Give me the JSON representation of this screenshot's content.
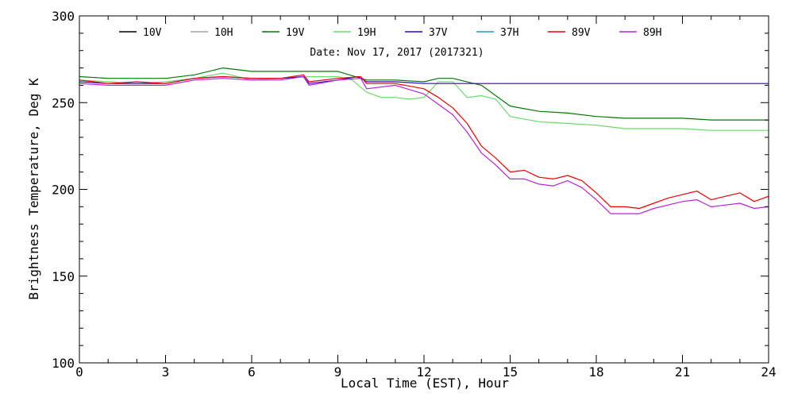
{
  "chart_data": {
    "type": "line",
    "title": "Date: Nov 17, 2017 (2017321)",
    "xlabel": "Local Time (EST), Hour",
    "ylabel": "Brightness Temperature, Deg K",
    "xlim": [
      0,
      24
    ],
    "ylim": [
      100,
      300
    ],
    "xticks": [
      0,
      3,
      6,
      9,
      12,
      15,
      18,
      21,
      24
    ],
    "yticks": [
      100,
      150,
      200,
      250,
      300
    ],
    "grid": false,
    "legend": "top",
    "series": [
      {
        "name": "10V",
        "color": "#000000",
        "x": [],
        "y": []
      },
      {
        "name": "10H",
        "color": "#a0a0a0",
        "x": [],
        "y": []
      },
      {
        "name": "19V",
        "color": "#007a00",
        "x": [
          0,
          1,
          2,
          3,
          4,
          5,
          6,
          7,
          8,
          9,
          10,
          11,
          12,
          12.5,
          13,
          14,
          15,
          16,
          17,
          18,
          19,
          20,
          21,
          22,
          23,
          24
        ],
        "y": [
          265,
          264,
          264,
          264,
          266,
          270,
          268,
          268,
          268,
          268,
          263,
          263,
          262,
          264,
          264,
          260,
          248,
          245,
          244,
          242,
          241,
          241,
          241,
          240,
          240,
          240
        ]
      },
      {
        "name": "19H",
        "color": "#66dd66",
        "x": [
          0,
          1,
          2,
          3,
          4,
          5,
          6,
          7,
          8,
          9,
          9.5,
          10,
          10.5,
          11,
          11.5,
          12,
          12.5,
          13,
          13.5,
          14,
          14.5,
          15,
          16,
          17,
          18,
          19,
          20,
          21,
          22,
          23,
          24
        ],
        "y": [
          263,
          262,
          261,
          262,
          264,
          267,
          263,
          264,
          265,
          265,
          263,
          256,
          253,
          253,
          252,
          253,
          262,
          262,
          253,
          254,
          252,
          242,
          239,
          238,
          237,
          235,
          235,
          235,
          234,
          234,
          234
        ]
      },
      {
        "name": "37V",
        "color": "#3300cc",
        "x": [
          0,
          1,
          2,
          3,
          4,
          5,
          6,
          7,
          7.8,
          8,
          9,
          9.7,
          10,
          11,
          12,
          13,
          14,
          15,
          16,
          17,
          18,
          19,
          20,
          21,
          22,
          23,
          24
        ],
        "y": [
          262,
          261,
          261,
          261,
          264,
          265,
          264,
          264,
          265,
          261,
          263,
          265,
          262,
          262,
          261,
          261,
          261,
          261,
          261,
          261,
          261,
          261,
          261,
          261,
          261,
          261,
          261
        ]
      },
      {
        "name": "37H",
        "color": "#2299cc",
        "x": [],
        "y": []
      },
      {
        "name": "89V",
        "color": "#ee0000",
        "x": [
          0,
          1,
          2,
          3,
          4,
          5,
          6,
          7,
          7.8,
          8,
          9,
          9.8,
          10,
          11,
          12,
          12.5,
          13,
          13.5,
          14,
          14.5,
          15,
          15.5,
          16,
          16.5,
          17,
          17.5,
          18,
          18.5,
          19,
          19.5,
          20,
          20.5,
          21,
          21.5,
          22,
          22.5,
          23,
          23.5,
          24
        ],
        "y": [
          263,
          261,
          262,
          261,
          264,
          265,
          264,
          264,
          266,
          262,
          264,
          265,
          261,
          261,
          258,
          253,
          247,
          238,
          225,
          218,
          210,
          211,
          207,
          206,
          208,
          205,
          198,
          190,
          190,
          189,
          192,
          195,
          197,
          199,
          194,
          196,
          198,
          193,
          196
        ]
      },
      {
        "name": "89H",
        "color": "#bb22dd",
        "x": [
          0,
          1,
          2,
          3,
          4,
          5,
          6,
          7,
          7.8,
          8,
          9,
          9.8,
          10,
          11,
          12,
          12.5,
          13,
          13.5,
          14,
          14.5,
          15,
          15.5,
          16,
          16.5,
          17,
          17.5,
          18,
          18.5,
          19,
          19.5,
          20,
          20.5,
          21,
          21.5,
          22,
          22.5,
          23,
          23.5,
          24
        ],
        "y": [
          261,
          260,
          260,
          260,
          263,
          264,
          263,
          263,
          265,
          260,
          263,
          264,
          258,
          260,
          255,
          249,
          243,
          233,
          221,
          214,
          206,
          206,
          203,
          202,
          205,
          201,
          194,
          186,
          186,
          186,
          189,
          191,
          193,
          194,
          190,
          191,
          192,
          189,
          190
        ]
      }
    ]
  }
}
